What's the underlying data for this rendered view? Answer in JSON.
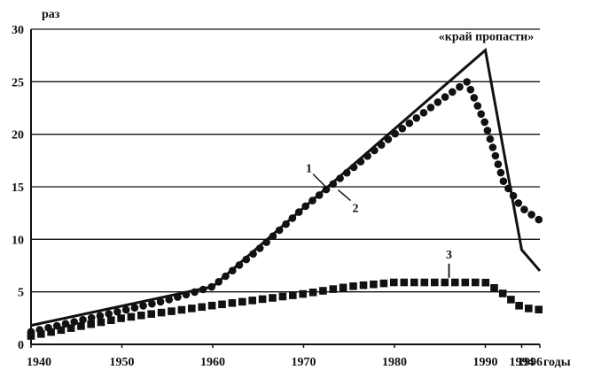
{
  "chart_data": {
    "type": "line",
    "title": "",
    "xlabel": "годы",
    "ylabel": "раз",
    "xlim": [
      1940,
      1996
    ],
    "ylim": [
      0,
      30
    ],
    "grid": "horizontal",
    "x_ticks": [
      "1940",
      "1950",
      "1960",
      "1970",
      "1980",
      "1990",
      "1994",
      "1996"
    ],
    "y_ticks": [
      "0",
      "5",
      "10",
      "15",
      "20",
      "25",
      "30"
    ],
    "series": [
      {
        "name": "1",
        "style": "solid",
        "color": "#111111",
        "x": [
          1940,
          1960,
          1990,
          1994,
          1996
        ],
        "y": [
          1.8,
          5.5,
          28,
          9,
          7
        ]
      },
      {
        "name": "2",
        "style": "dotted",
        "color": "#111111",
        "x": [
          1940,
          1945,
          1950,
          1955,
          1960,
          1965,
          1970,
          1975,
          1980,
          1985,
          1988,
          1990,
          1992,
          1994,
          1996
        ],
        "y": [
          1.2,
          2.2,
          3.2,
          4.2,
          5.5,
          9,
          13,
          16.5,
          20,
          23.2,
          25,
          21,
          15.5,
          13,
          11.8
        ]
      },
      {
        "name": "3",
        "style": "dashed",
        "color": "#111111",
        "x": [
          1940,
          1950,
          1960,
          1970,
          1975,
          1980,
          1985,
          1990,
          1992,
          1994,
          1996
        ],
        "y": [
          0.8,
          2.5,
          3.7,
          4.8,
          5.5,
          5.9,
          5.9,
          5.9,
          4.8,
          3.5,
          3.3
        ]
      }
    ],
    "annotations": [
      {
        "text": "«край пропасти»",
        "x": 1990,
        "y": 28
      },
      {
        "text": "1",
        "x": 1972.2,
        "y": 15.2
      },
      {
        "text": "2",
        "x": 1973.8,
        "y": 14.7
      },
      {
        "text": "3",
        "x": 1986,
        "y": 6
      }
    ]
  }
}
